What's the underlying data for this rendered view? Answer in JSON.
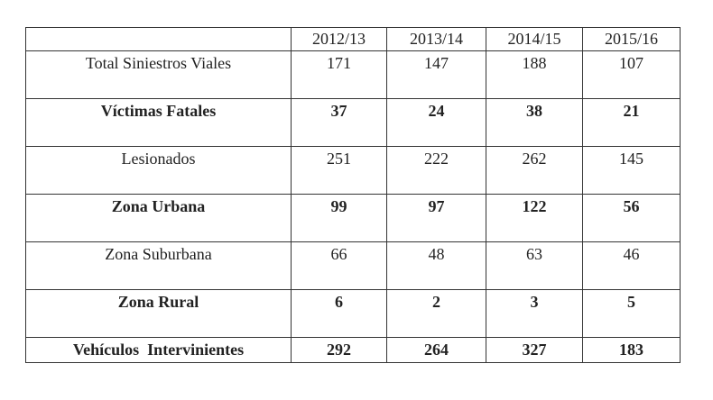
{
  "table": {
    "columns": [
      "2012/13",
      "2013/14",
      "2014/15",
      "2015/16"
    ],
    "rows": [
      {
        "label": "Total Siniestros Viales",
        "values": [
          171,
          147,
          188,
          107
        ],
        "bold": false
      },
      {
        "label": "Víctimas Fatales",
        "values": [
          37,
          24,
          38,
          21
        ],
        "bold": true
      },
      {
        "label": "Lesionados",
        "values": [
          251,
          222,
          262,
          145
        ],
        "bold": false
      },
      {
        "label": "Zona Urbana",
        "values": [
          99,
          97,
          122,
          56
        ],
        "bold": true
      },
      {
        "label": "Zona Suburbana",
        "values": [
          66,
          48,
          63,
          46
        ],
        "bold": false
      },
      {
        "label": "Zona Rural",
        "values": [
          6,
          2,
          3,
          5
        ],
        "bold": true
      },
      {
        "label": "Vehículos  Intervinientes",
        "values": [
          292,
          264,
          327,
          183
        ],
        "bold": true
      }
    ]
  }
}
